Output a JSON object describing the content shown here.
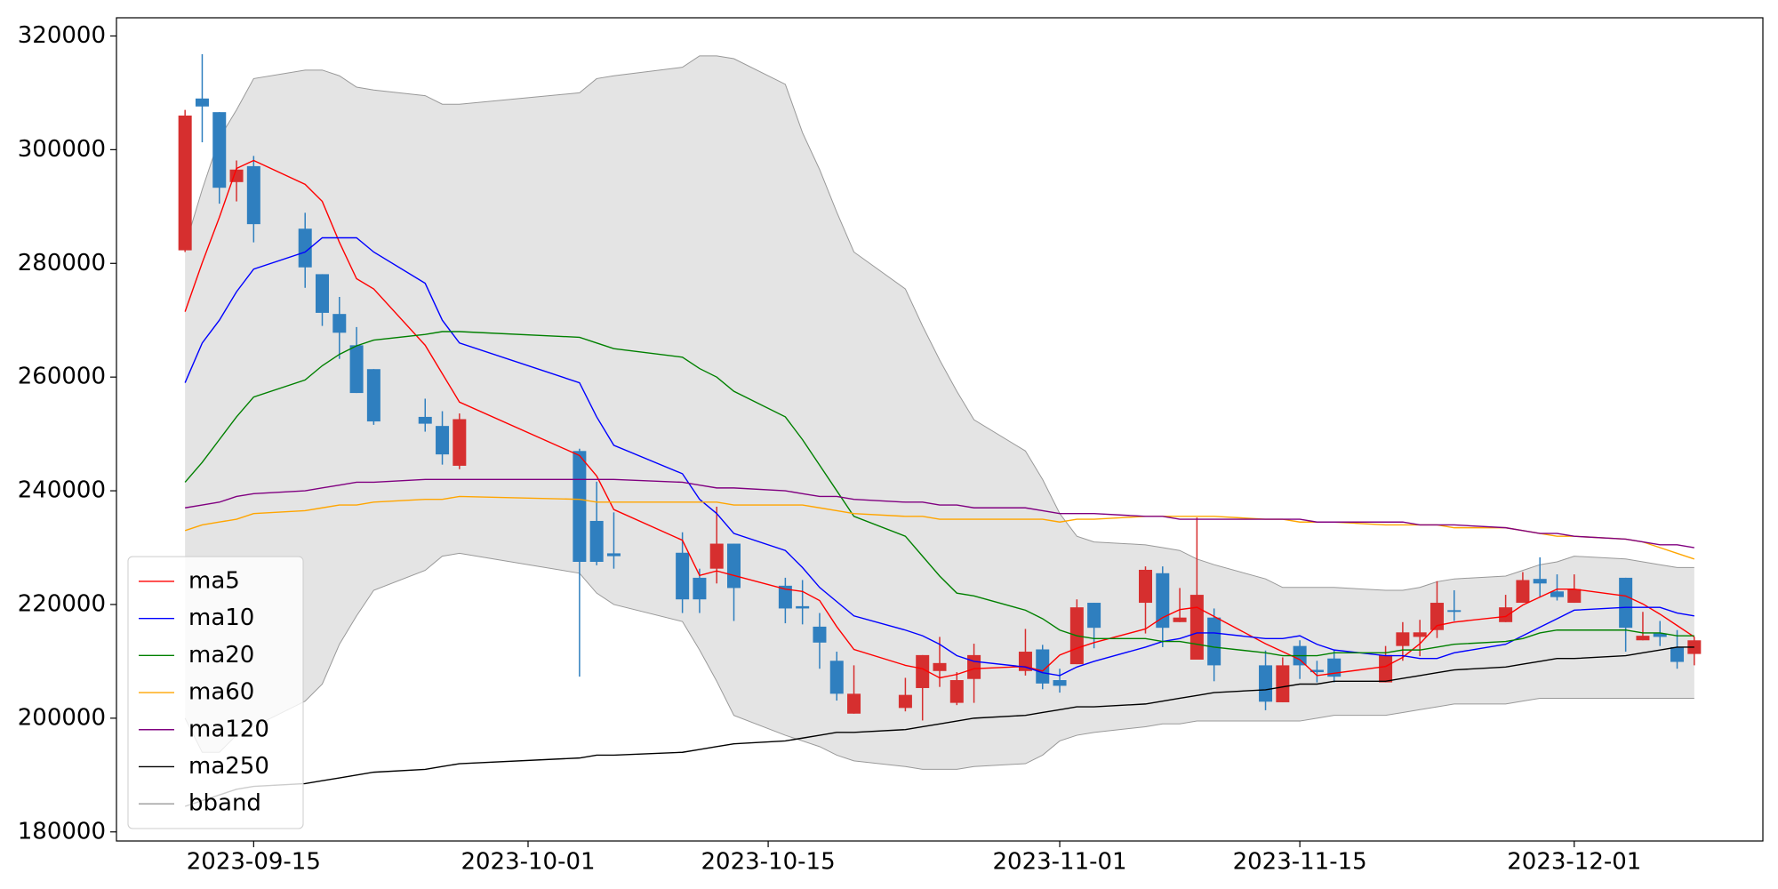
{
  "chart_data": {
    "type": "candlestick",
    "x": [
      "2023-09-11",
      "2023-09-12",
      "2023-09-13",
      "2023-09-14",
      "2023-09-15",
      "2023-09-18",
      "2023-09-19",
      "2023-09-20",
      "2023-09-21",
      "2023-09-22",
      "2023-09-25",
      "2023-09-26",
      "2023-09-27",
      "2023-10-04",
      "2023-10-05",
      "2023-10-06",
      "2023-10-10",
      "2023-10-11",
      "2023-10-12",
      "2023-10-13",
      "2023-10-16",
      "2023-10-17",
      "2023-10-18",
      "2023-10-19",
      "2023-10-20",
      "2023-10-23",
      "2023-10-24",
      "2023-10-25",
      "2023-10-26",
      "2023-10-27",
      "2023-10-30",
      "2023-10-31",
      "2023-11-01",
      "2023-11-02",
      "2023-11-03",
      "2023-11-06",
      "2023-11-07",
      "2023-11-08",
      "2023-11-09",
      "2023-11-10",
      "2023-11-13",
      "2023-11-14",
      "2023-11-15",
      "2023-11-16",
      "2023-11-17",
      "2023-11-20",
      "2023-11-21",
      "2023-11-22",
      "2023-11-23",
      "2023-11-24",
      "2023-11-27",
      "2023-11-28",
      "2023-11-29",
      "2023-11-30",
      "2023-12-01",
      "2023-12-04",
      "2023-12-05",
      "2023-12-06",
      "2023-12-07",
      "2023-12-08"
    ],
    "candles": {
      "up_color": "#d62f2f",
      "down_color": "#2f7fbf",
      "open": [
        282300,
        309000,
        306600,
        294300,
        297100,
        286100,
        278100,
        271100,
        265600,
        261400,
        253000,
        251400,
        244400,
        247000,
        234700,
        229000,
        229100,
        224700,
        226300,
        230700,
        223300,
        219700,
        216100,
        210100,
        200800,
        201800,
        205300,
        208300,
        202700,
        206900,
        208300,
        212100,
        206700,
        209500,
        220300,
        220300,
        225500,
        216900,
        210300,
        217700,
        209300,
        202800,
        212700,
        208500,
        210500,
        206300,
        212700,
        214300,
        215500,
        219000,
        216900,
        220300,
        224500,
        222300,
        220300,
        224700,
        213700,
        214900,
        212500,
        211300
      ],
      "high": [
        307000,
        316800,
        306600,
        298100,
        298900,
        288900,
        278100,
        274100,
        268800,
        261400,
        256200,
        254000,
        253600,
        247400,
        241600,
        236200,
        232700,
        226300,
        237200,
        230700,
        224700,
        224300,
        218500,
        211700,
        209300,
        207100,
        211100,
        214300,
        208100,
        213100,
        215700,
        212900,
        208700,
        220900,
        220300,
        226700,
        226700,
        222900,
        235300,
        219300,
        211900,
        210700,
        213700,
        210100,
        212100,
        212700,
        216900,
        217300,
        224100,
        222500,
        221700,
        225700,
        228300,
        225300,
        225300,
        224700,
        218700,
        217100,
        215500,
        214300
      ],
      "low": [
        282000,
        301300,
        290500,
        290900,
        283700,
        275700,
        269000,
        263200,
        257200,
        251600,
        250400,
        244600,
        243800,
        207300,
        226900,
        226300,
        218500,
        218500,
        223700,
        217100,
        216700,
        216500,
        208700,
        203100,
        200800,
        201200,
        199600,
        205500,
        202300,
        202700,
        207500,
        205100,
        204500,
        209500,
        212300,
        214900,
        212500,
        216900,
        210300,
        206500,
        201400,
        202800,
        206900,
        206300,
        206300,
        206300,
        210100,
        210900,
        214100,
        217100,
        216900,
        220300,
        221300,
        220700,
        220300,
        211700,
        213700,
        212700,
        208700,
        209300
      ],
      "close": [
        306000,
        307600,
        293300,
        296500,
        286900,
        279300,
        271300,
        267800,
        257200,
        252200,
        251800,
        246400,
        252600,
        227500,
        227500,
        228500,
        220900,
        220900,
        230700,
        222900,
        219300,
        219300,
        213300,
        204300,
        204300,
        204100,
        211100,
        209700,
        206700,
        211100,
        211700,
        206100,
        205700,
        219500,
        215900,
        226100,
        215900,
        217700,
        221700,
        209300,
        202900,
        209300,
        209300,
        208100,
        207300,
        211100,
        215100,
        215100,
        220300,
        218700,
        219500,
        224300,
        223700,
        221300,
        222700,
        215900,
        214500,
        214300,
        209900,
        213700
      ]
    },
    "series": [
      {
        "name": "ma5",
        "color": "red",
        "values": [
          271500,
          280100,
          288100,
          296700,
          298100,
          293900,
          290900,
          283700,
          277300,
          275500,
          265600,
          260600,
          255600,
          246200,
          242600,
          236700,
          231300,
          225100,
          225900,
          225100,
          222700,
          222300,
          220700,
          216100,
          212100,
          209300,
          208700,
          207100,
          207700,
          208700,
          209100,
          208300,
          211100,
          212300,
          213300,
          215700,
          217700,
          219100,
          219500,
          217900,
          213100,
          211700,
          210300,
          207500,
          207900,
          209100,
          210700,
          213100,
          216300,
          216900,
          217900,
          219900,
          221300,
          222700,
          222700,
          221500,
          220100,
          218300,
          216300,
          214300
        ]
      },
      {
        "name": "ma10",
        "color": "blue",
        "values": [
          259000,
          266000,
          270000,
          275000,
          279000,
          282000,
          284500,
          284500,
          284500,
          282000,
          276500,
          270000,
          266000,
          259000,
          253000,
          248000,
          243000,
          238500,
          236000,
          232500,
          229500,
          226500,
          223000,
          220500,
          218000,
          215500,
          214500,
          213000,
          211000,
          210000,
          209000,
          208000,
          207500,
          209000,
          210000,
          212500,
          213500,
          214000,
          215000,
          215000,
          214000,
          214000,
          214500,
          213000,
          212000,
          211000,
          211000,
          210500,
          210500,
          211500,
          213000,
          214500,
          216000,
          217500,
          219000,
          219500,
          219500,
          219500,
          218500,
          218000
        ]
      },
      {
        "name": "ma20",
        "color": "green",
        "values": [
          241500,
          245000,
          249000,
          253000,
          256500,
          259500,
          262000,
          264000,
          265500,
          266500,
          267500,
          268000,
          268000,
          267000,
          266000,
          265000,
          263500,
          261500,
          260000,
          257500,
          253000,
          249000,
          244500,
          240000,
          235500,
          232000,
          228500,
          225000,
          222000,
          221500,
          219000,
          217500,
          215500,
          214500,
          214000,
          214000,
          213500,
          213500,
          213000,
          212500,
          211500,
          211000,
          211000,
          211000,
          211500,
          211500,
          212000,
          212000,
          212500,
          213000,
          213500,
          214000,
          215000,
          215500,
          215500,
          215500,
          215000,
          215000,
          214500,
          214500
        ]
      },
      {
        "name": "ma60",
        "color": "orange",
        "values": [
          233000,
          234000,
          234500,
          235000,
          236000,
          236500,
          237000,
          237500,
          237500,
          238000,
          238500,
          238500,
          239000,
          238500,
          238000,
          238000,
          238000,
          238000,
          238000,
          237500,
          237500,
          237500,
          237000,
          236500,
          236000,
          235500,
          235500,
          235000,
          235000,
          235000,
          235000,
          235000,
          234500,
          235000,
          235000,
          235500,
          235500,
          235500,
          235500,
          235500,
          235000,
          235000,
          234500,
          234500,
          234500,
          234000,
          234000,
          234000,
          234000,
          233500,
          233500,
          233000,
          232500,
          232000,
          232000,
          231500,
          231000,
          230000,
          229000,
          228000
        ]
      },
      {
        "name": "ma120",
        "color": "purple",
        "values": [
          237000,
          237500,
          238000,
          239000,
          239500,
          240000,
          240500,
          241000,
          241500,
          241500,
          242000,
          242000,
          242000,
          242000,
          242000,
          242000,
          241500,
          241000,
          240500,
          240500,
          240000,
          239500,
          239000,
          239000,
          238500,
          238000,
          238000,
          237500,
          237500,
          237000,
          237000,
          236500,
          236000,
          236000,
          236000,
          235500,
          235500,
          235000,
          235000,
          235000,
          235000,
          235000,
          235000,
          234500,
          234500,
          234500,
          234500,
          234000,
          234000,
          234000,
          233500,
          233000,
          232500,
          232500,
          232000,
          231500,
          231000,
          230500,
          230500,
          230000
        ]
      },
      {
        "name": "ma250",
        "color": "black",
        "values": [
          184500,
          185500,
          186500,
          187500,
          188000,
          188500,
          189000,
          189500,
          190000,
          190500,
          191000,
          191500,
          192000,
          193000,
          193500,
          193500,
          194000,
          194500,
          195000,
          195500,
          196000,
          196500,
          197000,
          197500,
          197500,
          198000,
          198500,
          199000,
          199500,
          200000,
          200500,
          201000,
          201500,
          202000,
          202000,
          202500,
          203000,
          203500,
          204000,
          204500,
          205000,
          205500,
          206000,
          206000,
          206500,
          206500,
          207000,
          207500,
          208000,
          208500,
          209000,
          209500,
          210000,
          210500,
          210500,
          211000,
          211500,
          212000,
          212500,
          212500
        ]
      }
    ],
    "bband": {
      "name": "bband",
      "fill": "#e4e4e4",
      "color": "#999999",
      "upper": [
        283000,
        293000,
        302000,
        307000,
        312500,
        314000,
        314000,
        313000,
        311000,
        310500,
        309500,
        308000,
        308000,
        310000,
        312500,
        313000,
        314500,
        316500,
        316500,
        316000,
        311500,
        303000,
        296500,
        289000,
        282000,
        275500,
        269000,
        263000,
        257500,
        252500,
        247000,
        242000,
        236000,
        232000,
        231000,
        230500,
        230000,
        229500,
        228000,
        227000,
        224500,
        223000,
        223000,
        223000,
        223000,
        222500,
        222500,
        223000,
        224000,
        224500,
        225000,
        226000,
        227000,
        227500,
        228500,
        228000,
        227500,
        227000,
        226500,
        226500
      ],
      "lower": [
        200000,
        194000,
        194000,
        197000,
        198500,
        203000,
        206000,
        213000,
        218000,
        222500,
        226000,
        228500,
        229000,
        225500,
        222000,
        220000,
        217000,
        212000,
        206500,
        200500,
        197000,
        196000,
        195000,
        193500,
        192500,
        191500,
        191000,
        191000,
        191000,
        191500,
        192000,
        193500,
        196000,
        197000,
        197500,
        198500,
        199000,
        199000,
        199500,
        199500,
        199500,
        199500,
        199500,
        200000,
        200500,
        200500,
        201000,
        201500,
        202000,
        202500,
        202500,
        203000,
        203500,
        203500,
        203500,
        203500,
        203500,
        203500,
        203500,
        203500
      ]
    },
    "xlim": [
      "2023-09-07",
      "2023-12-12"
    ],
    "ylim": [
      178400,
      323200
    ],
    "xticks": [
      "2023-09-15",
      "2023-10-01",
      "2023-10-15",
      "2023-11-01",
      "2023-11-15",
      "2023-12-01"
    ],
    "yticks": [
      180000,
      200000,
      220000,
      240000,
      260000,
      280000,
      300000,
      320000
    ],
    "legend": "lower left",
    "grid": false
  }
}
